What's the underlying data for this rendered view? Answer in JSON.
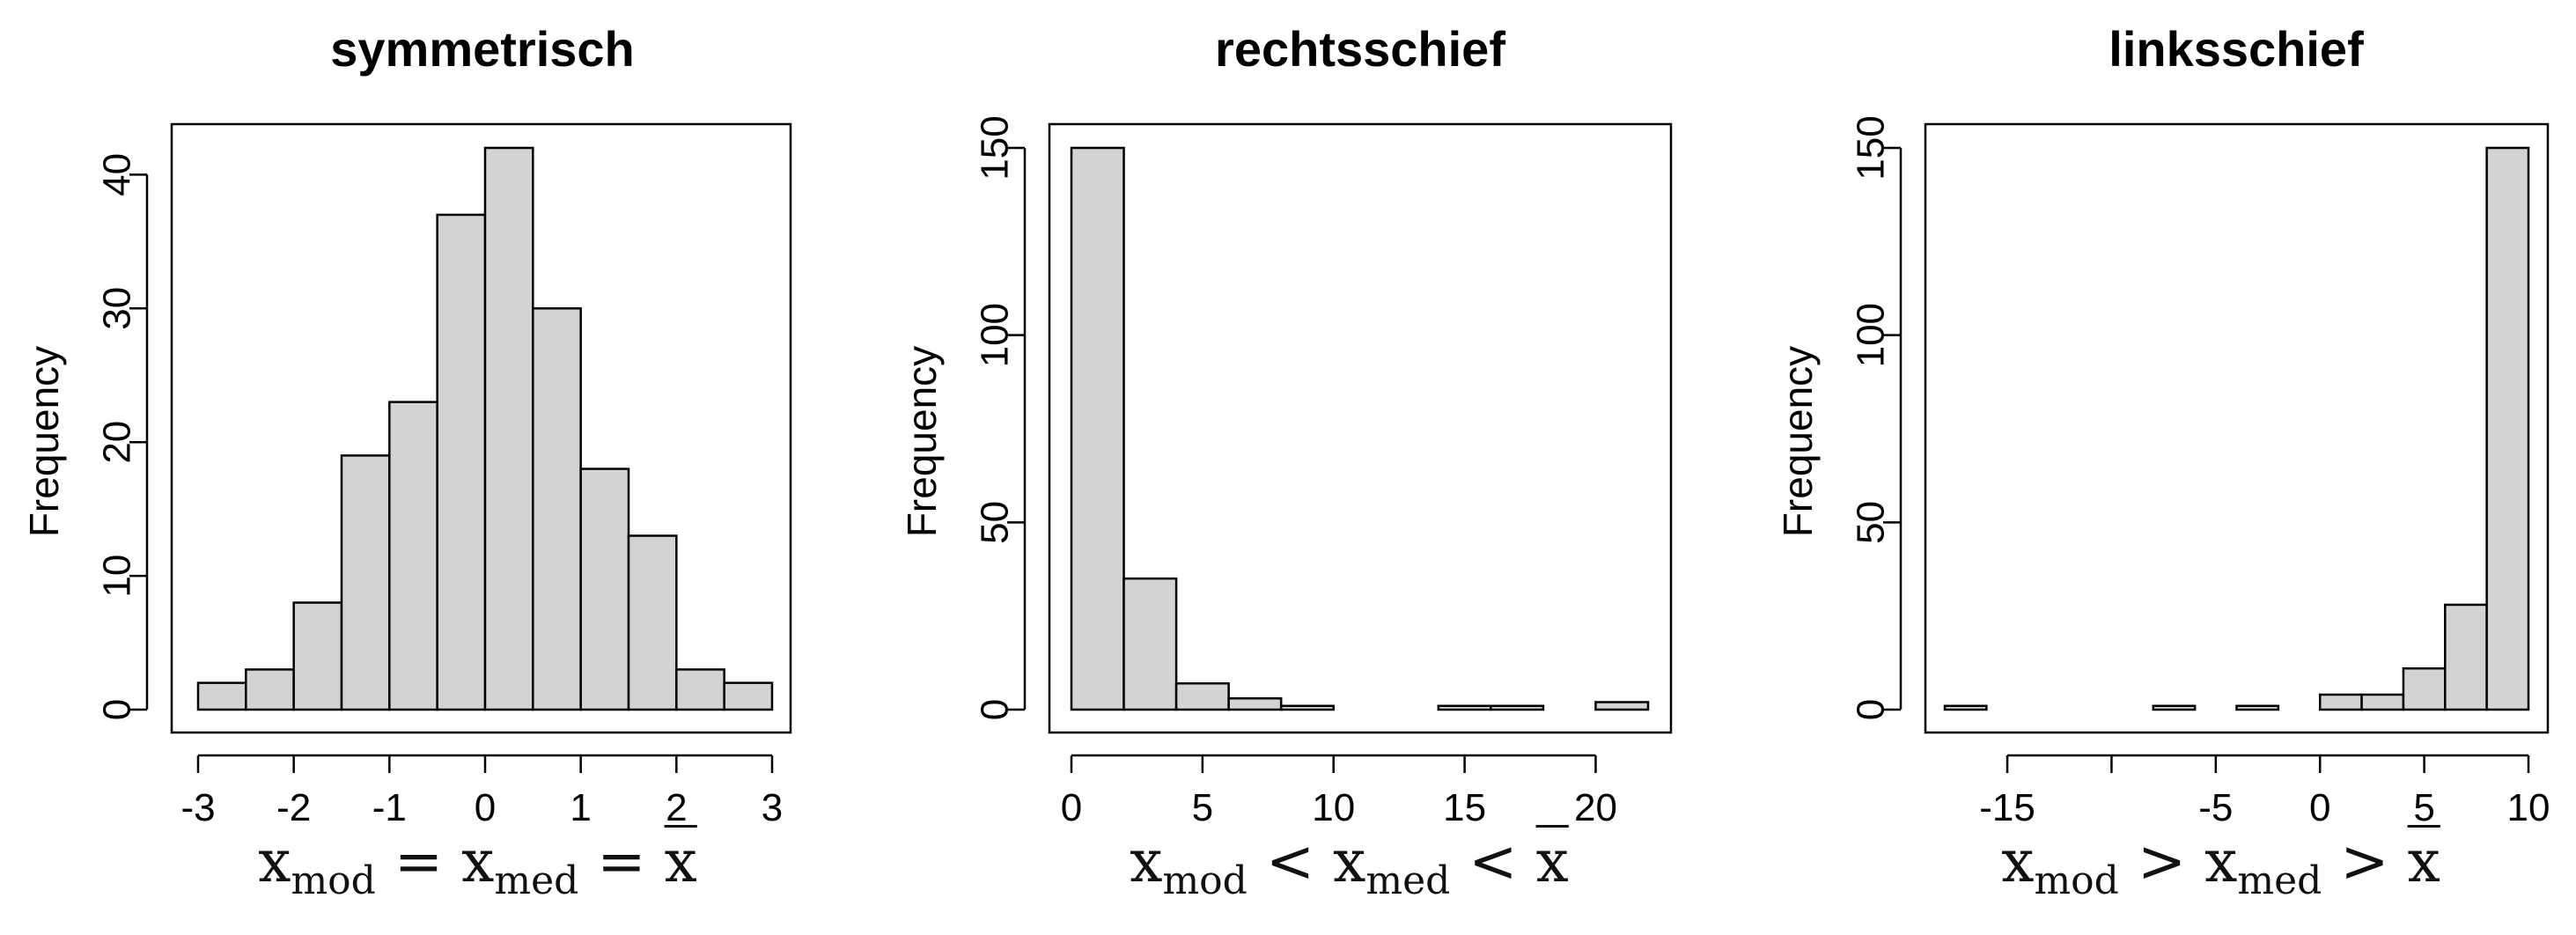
{
  "chart_data": [
    {
      "type": "bar",
      "title": "symmetrisch",
      "xlabel": "",
      "ylabel": "Frequency",
      "bar_color": "#d3d3d3",
      "edge_color": "#000000",
      "xlim": [
        -3,
        3
      ],
      "ylim": [
        0,
        42
      ],
      "xticks": [
        "-3",
        "-2",
        "-1",
        "0",
        "1",
        "2",
        "3"
      ],
      "yticks": [
        "0",
        "10",
        "20",
        "30",
        "40"
      ],
      "bins": [
        {
          "from": -3.0,
          "to": -2.5,
          "count": 2
        },
        {
          "from": -2.5,
          "to": -2.0,
          "count": 3
        },
        {
          "from": -2.0,
          "to": -1.5,
          "count": 8
        },
        {
          "from": -1.5,
          "to": -1.0,
          "count": 19
        },
        {
          "from": -1.0,
          "to": -0.5,
          "count": 23
        },
        {
          "from": -0.5,
          "to": 0.0,
          "count": 37
        },
        {
          "from": 0.0,
          "to": 0.5,
          "count": 42
        },
        {
          "from": 0.5,
          "to": 1.0,
          "count": 30
        },
        {
          "from": 1.0,
          "to": 1.5,
          "count": 18
        },
        {
          "from": 1.5,
          "to": 2.0,
          "count": 13
        },
        {
          "from": 2.0,
          "to": 2.5,
          "count": 3
        },
        {
          "from": 2.5,
          "to": 3.0,
          "count": 2
        }
      ]
    },
    {
      "type": "bar",
      "title": "rechtsschief",
      "xlabel": "",
      "ylabel": "Frequency",
      "bar_color": "#d3d3d3",
      "edge_color": "#000000",
      "xlim": [
        0,
        22
      ],
      "ylim": [
        0,
        150
      ],
      "xticks": [
        "0",
        "5",
        "10",
        "15",
        "20"
      ],
      "yticks": [
        "0",
        "50",
        "100",
        "150"
      ],
      "bins": [
        {
          "from": 0,
          "to": 2,
          "count": 150
        },
        {
          "from": 2,
          "to": 4,
          "count": 35
        },
        {
          "from": 4,
          "to": 6,
          "count": 7
        },
        {
          "from": 6,
          "to": 8,
          "count": 3
        },
        {
          "from": 8,
          "to": 10,
          "count": 1
        },
        {
          "from": 10,
          "to": 12,
          "count": 0
        },
        {
          "from": 12,
          "to": 14,
          "count": 0
        },
        {
          "from": 14,
          "to": 16,
          "count": 1
        },
        {
          "from": 16,
          "to": 18,
          "count": 1
        },
        {
          "from": 18,
          "to": 20,
          "count": 0
        },
        {
          "from": 20,
          "to": 22,
          "count": 2
        }
      ]
    },
    {
      "type": "bar",
      "title": "linksschief",
      "xlabel": "",
      "ylabel": "Frequency",
      "bar_color": "#d3d3d3",
      "edge_color": "#000000",
      "xlim": [
        -18,
        10
      ],
      "ylim": [
        0,
        150
      ],
      "xticks": [
        "-15",
        "-5",
        "0",
        "5",
        "10"
      ],
      "minor_xticks": [
        -10
      ],
      "yticks": [
        "0",
        "50",
        "100",
        "150"
      ],
      "bins": [
        {
          "from": -18,
          "to": -16,
          "count": 1
        },
        {
          "from": -16,
          "to": -14,
          "count": 0
        },
        {
          "from": -14,
          "to": -12,
          "count": 0
        },
        {
          "from": -12,
          "to": -10,
          "count": 0
        },
        {
          "from": -10,
          "to": -8,
          "count": 0
        },
        {
          "from": -8,
          "to": -6,
          "count": 1
        },
        {
          "from": -6,
          "to": -4,
          "count": 0
        },
        {
          "from": -4,
          "to": -2,
          "count": 1
        },
        {
          "from": -2,
          "to": 0,
          "count": 0
        },
        {
          "from": 0,
          "to": 2,
          "count": 4
        },
        {
          "from": 2,
          "to": 4,
          "count": 4
        },
        {
          "from": 4,
          "to": 6,
          "count": 11
        },
        {
          "from": 6,
          "to": 8,
          "count": 28
        },
        {
          "from": 8,
          "to": 10,
          "count": 150
        }
      ]
    }
  ],
  "captions": [
    {
      "x": "x",
      "mod": "mod",
      "rel1": "=",
      "med": "med",
      "rel2": "=",
      "xbar": "x"
    },
    {
      "x": "x",
      "mod": "mod",
      "rel1": "<",
      "med": "med",
      "rel2": "<",
      "xbar": "x"
    },
    {
      "x": "x",
      "mod": "mod",
      "rel1": ">",
      "med": "med",
      "rel2": ">",
      "xbar": "x"
    }
  ]
}
